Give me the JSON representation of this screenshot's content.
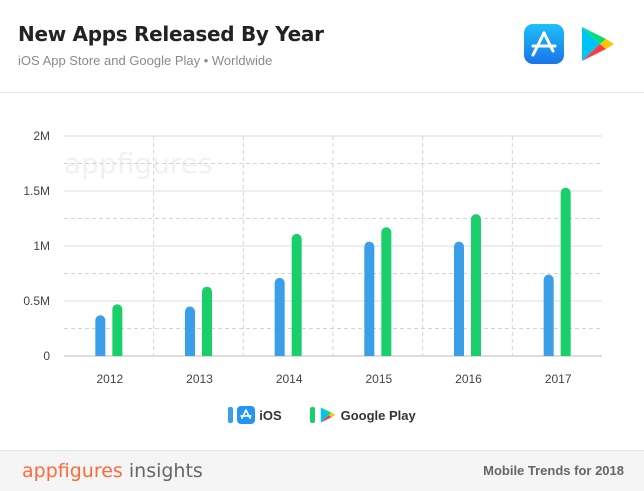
{
  "header": {
    "title": "New Apps Released By Year",
    "subtitle": "iOS App Store and Google Play • Worldwide"
  },
  "icons": {
    "app_store": "app-store-icon",
    "google_play": "google-play-icon"
  },
  "colors": {
    "ios": "#3b9ee8",
    "google_play": "#19cf6a",
    "brand": "#ff6a39"
  },
  "chart_data": {
    "type": "bar",
    "categories": [
      "2012",
      "2013",
      "2014",
      "2015",
      "2016",
      "2017"
    ],
    "series": [
      {
        "name": "iOS",
        "values": [
          370000,
          450000,
          710000,
          1040000,
          1040000,
          740000
        ]
      },
      {
        "name": "Google Play",
        "values": [
          470000,
          630000,
          1110000,
          1170000,
          1290000,
          1530000
        ]
      }
    ],
    "yticks": [
      0,
      500000,
      1000000,
      1500000,
      2000000
    ],
    "ytick_labels": [
      "0",
      "0.5M",
      "1M",
      "1.5M",
      "2M"
    ],
    "ylim": [
      0,
      2000000
    ],
    "grid": true,
    "legend_position": "bottom",
    "watermark": "appfigures"
  },
  "legend": {
    "ios_label": "iOS",
    "google_play_label": "Google Play"
  },
  "footer": {
    "brand_main": "appfigures",
    "brand_sub": "insights",
    "note": "Mobile Trends for 2018"
  }
}
